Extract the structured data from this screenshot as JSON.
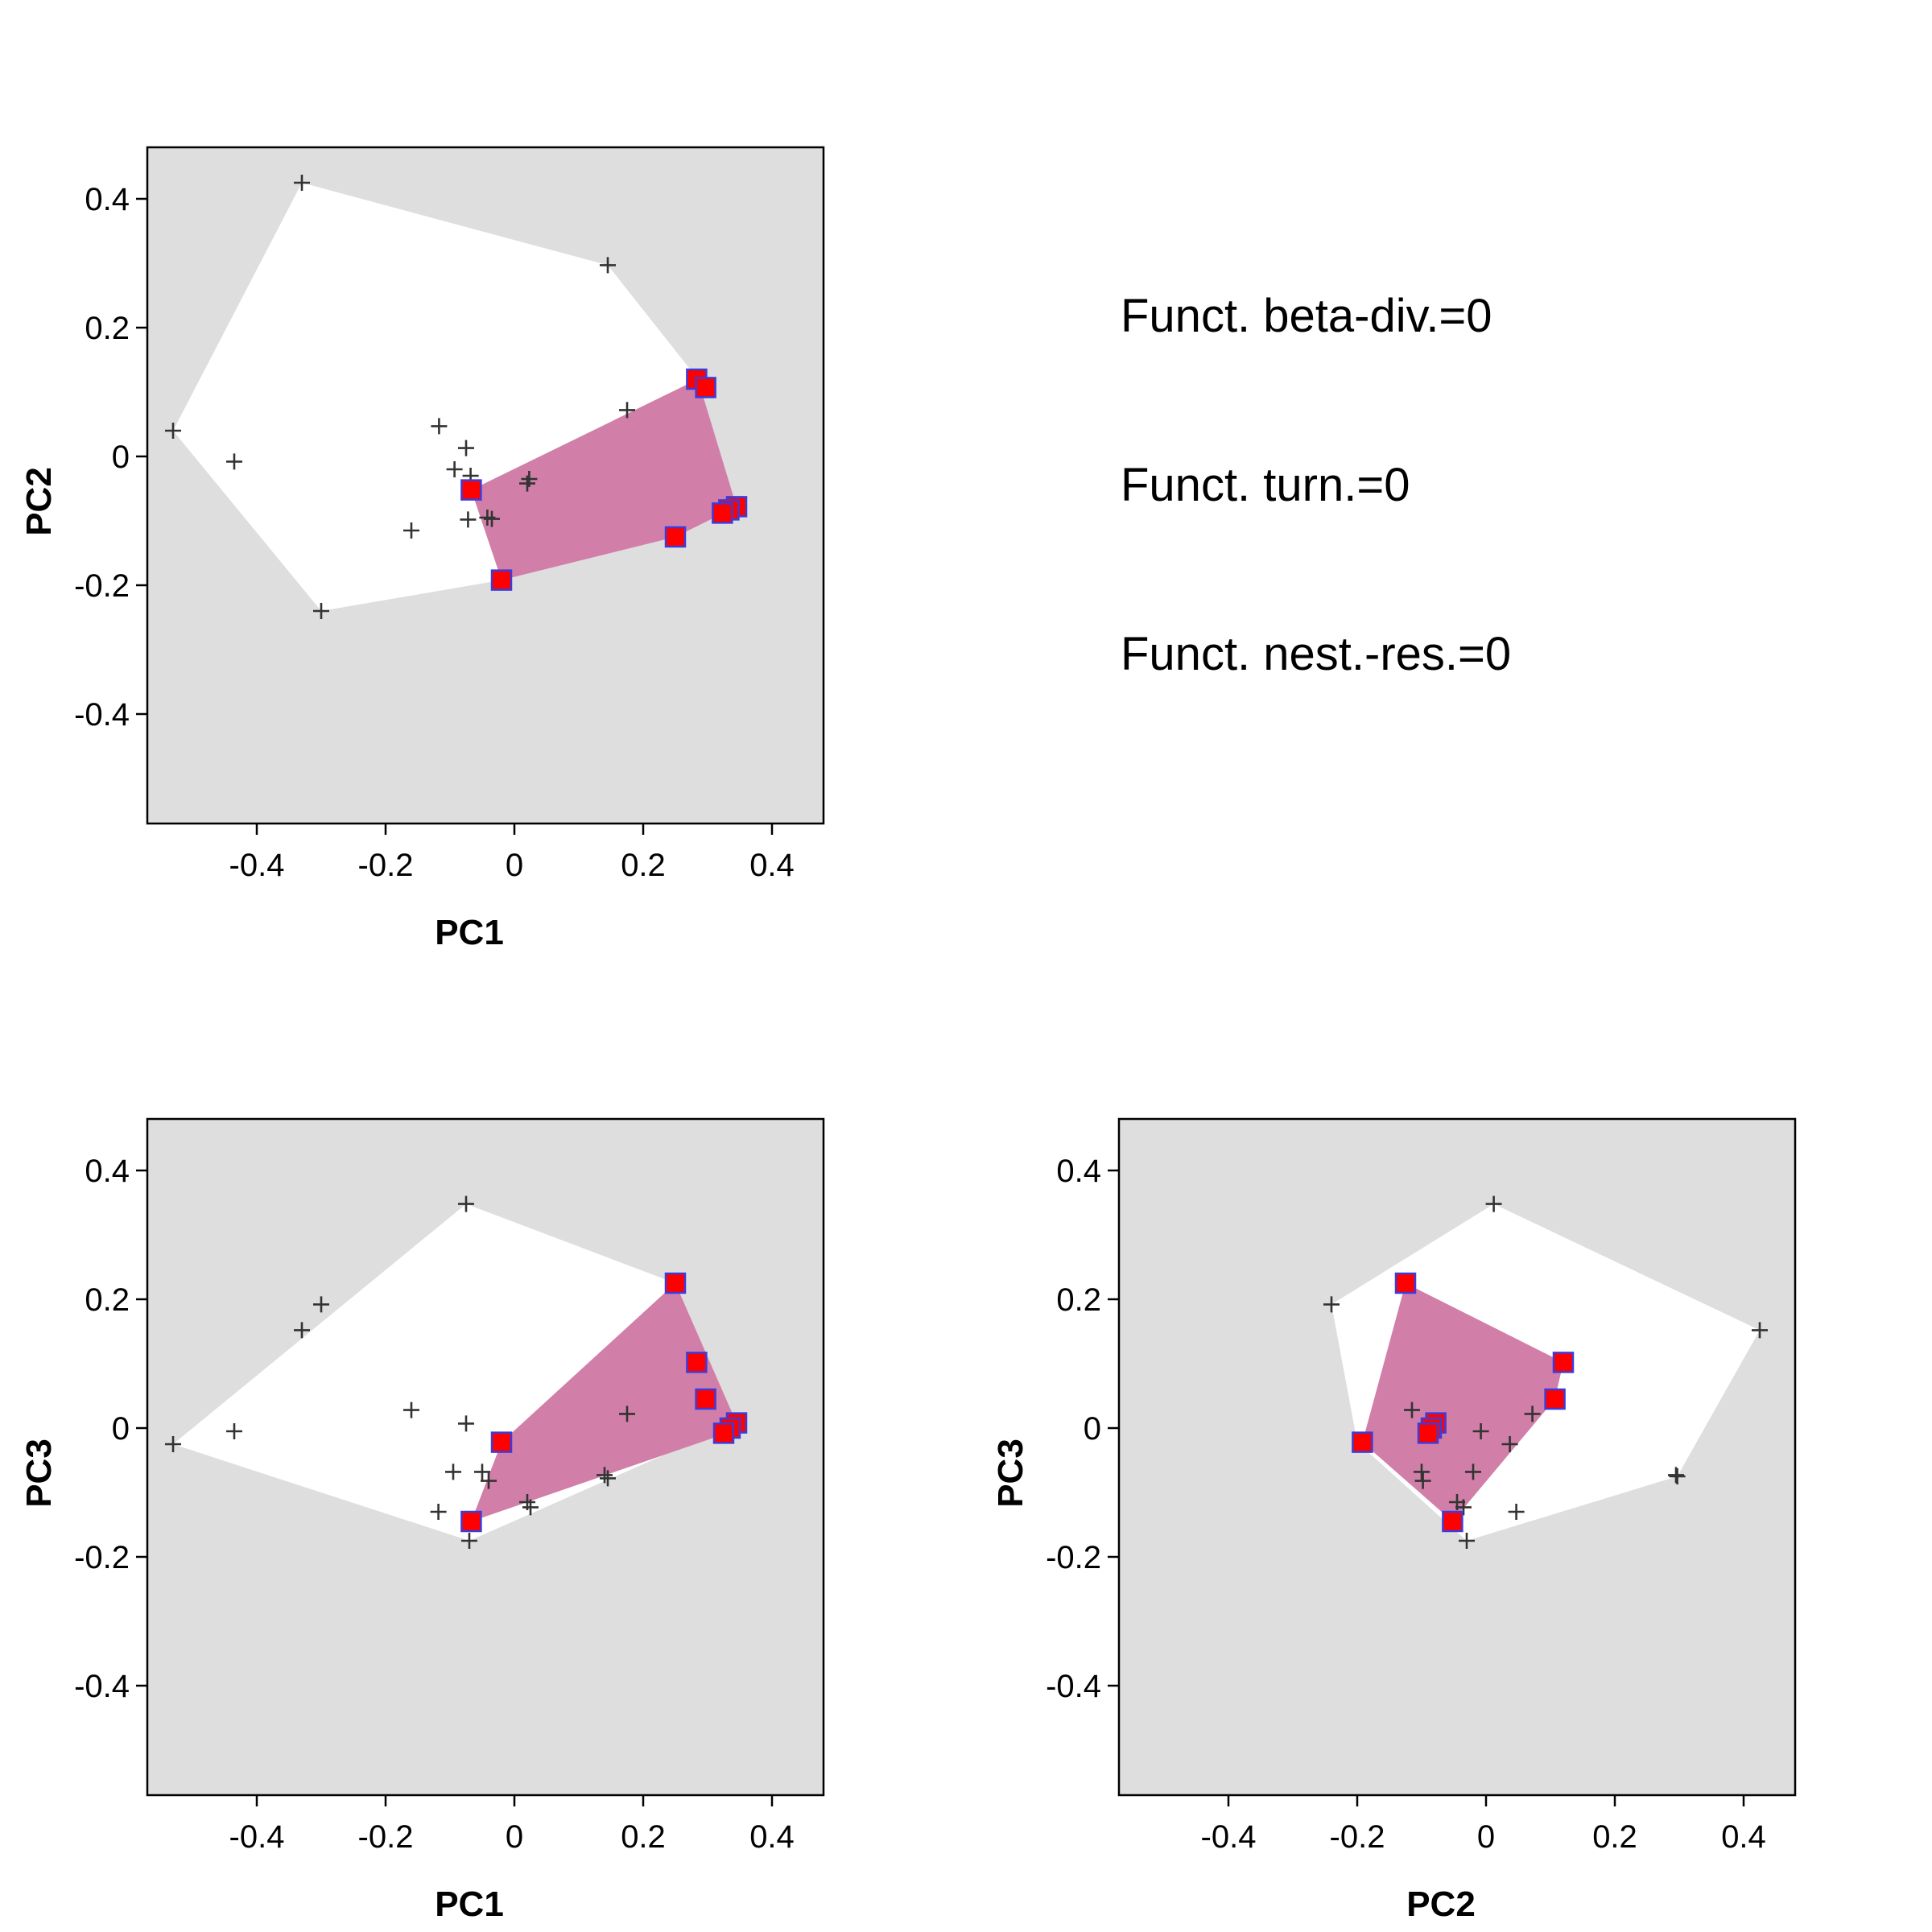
{
  "stats": {
    "beta_div": "Funct. beta-div.=0",
    "turnover": "Funct. turn.=0",
    "nestedness": "Funct. nest.-res.=0"
  },
  "colors": {
    "panel_bg": "#dedede",
    "hull_all": "#ffffff",
    "hull_selected": "#d17fa8",
    "point_fill": "#ff0000",
    "point_border": "#3c3cdc",
    "cross": "#333333"
  },
  "chart_data": [
    {
      "type": "scatter",
      "id": "pc1-pc2",
      "xlabel": "PC1",
      "ylabel": "PC2",
      "xlim": [
        -0.57,
        0.48
      ],
      "ylim": [
        -0.57,
        0.48
      ],
      "xticks": [
        -0.4,
        -0.2,
        0,
        0.2,
        0.4
      ],
      "xtick_labels": [
        "-0.4",
        "-0.2",
        "0",
        "0.2",
        "0.4"
      ],
      "yticks": [
        0.4,
        0.2,
        0,
        -0.2,
        -0.4
      ],
      "ytick_labels": [
        "0.4",
        "0.2",
        "0",
        "-0.2",
        "-0.4"
      ],
      "hull_all": [
        [
          -0.33,
          0.425
        ],
        [
          0.145,
          0.297
        ],
        [
          0.285,
          0.12
        ],
        [
          0.345,
          -0.078
        ],
        [
          0.25,
          -0.125
        ],
        [
          -0.02,
          -0.192
        ],
        [
          -0.3,
          -0.24
        ],
        [
          -0.53,
          0.04
        ]
      ],
      "hull_selected": [
        [
          0.285,
          0.12
        ],
        [
          0.345,
          -0.078
        ],
        [
          0.25,
          -0.125
        ],
        [
          -0.02,
          -0.192
        ],
        [
          -0.067,
          -0.052
        ]
      ],
      "species_all": [
        [
          -0.33,
          0.425
        ],
        [
          0.145,
          0.297
        ],
        [
          -0.53,
          0.04
        ],
        [
          -0.435,
          -0.008
        ],
        [
          -0.3,
          -0.24
        ],
        [
          -0.16,
          -0.115
        ],
        [
          -0.117,
          0.047
        ],
        [
          -0.093,
          -0.02
        ],
        [
          -0.075,
          0.013
        ],
        [
          -0.068,
          -0.03
        ],
        [
          -0.072,
          -0.098
        ],
        [
          -0.042,
          -0.095
        ],
        [
          -0.035,
          -0.097
        ],
        [
          0.02,
          -0.042
        ],
        [
          0.023,
          -0.035
        ],
        [
          0.175,
          0.072
        ],
        [
          0.285,
          0.12
        ],
        [
          0.297,
          0.108
        ],
        [
          0.345,
          -0.078
        ],
        [
          0.33,
          -0.086
        ],
        [
          0.325,
          -0.09
        ],
        [
          0.25,
          -0.125
        ],
        [
          -0.02,
          -0.192
        ],
        [
          -0.067,
          -0.052
        ]
      ],
      "species_selected": [
        [
          0.283,
          0.12
        ],
        [
          0.297,
          0.107
        ],
        [
          0.345,
          -0.078
        ],
        [
          0.333,
          -0.083
        ],
        [
          0.323,
          -0.088
        ],
        [
          0.25,
          -0.125
        ],
        [
          -0.02,
          -0.192
        ],
        [
          -0.067,
          -0.052
        ]
      ]
    },
    {
      "type": "scatter",
      "id": "pc1-pc3",
      "xlabel": "PC1",
      "ylabel": "PC3",
      "xlim": [
        -0.57,
        0.48
      ],
      "ylim": [
        -0.57,
        0.48
      ],
      "xticks": [
        -0.4,
        -0.2,
        0,
        0.2,
        0.4
      ],
      "xtick_labels": [
        "-0.4",
        "-0.2",
        "0",
        "0.2",
        "0.4"
      ],
      "yticks": [
        0.4,
        0.2,
        0,
        -0.2,
        -0.4
      ],
      "ytick_labels": [
        "0.4",
        "0.2",
        "0",
        "-0.2",
        "-0.4"
      ],
      "hull_all": [
        [
          -0.075,
          0.348
        ],
        [
          0.25,
          0.225
        ],
        [
          0.345,
          0.008
        ],
        [
          -0.07,
          -0.175
        ],
        [
          -0.53,
          -0.025
        ]
      ],
      "hull_selected": [
        [
          0.25,
          0.225
        ],
        [
          0.345,
          0.008
        ],
        [
          0.33,
          -0.008
        ],
        [
          -0.067,
          -0.145
        ],
        [
          -0.02,
          -0.022
        ]
      ],
      "species_all": [
        [
          -0.075,
          0.348
        ],
        [
          -0.3,
          0.192
        ],
        [
          -0.33,
          0.152
        ],
        [
          -0.53,
          -0.025
        ],
        [
          -0.435,
          -0.005
        ],
        [
          -0.16,
          0.028
        ],
        [
          -0.075,
          0.007
        ],
        [
          -0.095,
          -0.068
        ],
        [
          -0.05,
          -0.068
        ],
        [
          -0.04,
          -0.082
        ],
        [
          -0.118,
          -0.13
        ],
        [
          -0.07,
          -0.175
        ],
        [
          0.02,
          -0.115
        ],
        [
          0.025,
          -0.123
        ],
        [
          0.14,
          -0.073
        ],
        [
          0.145,
          -0.078
        ],
        [
          0.175,
          0.022
        ],
        [
          0.25,
          0.225
        ],
        [
          0.283,
          0.102
        ],
        [
          0.297,
          0.045
        ],
        [
          0.345,
          0.008
        ],
        [
          0.33,
          -0.005
        ],
        [
          -0.02,
          -0.022
        ],
        [
          -0.067,
          -0.145
        ]
      ],
      "species_selected": [
        [
          0.25,
          0.225
        ],
        [
          0.283,
          0.102
        ],
        [
          0.297,
          0.045
        ],
        [
          0.345,
          0.008
        ],
        [
          0.335,
          0.0
        ],
        [
          0.325,
          -0.008
        ],
        [
          -0.02,
          -0.022
        ],
        [
          -0.067,
          -0.145
        ]
      ]
    },
    {
      "type": "scatter",
      "id": "pc2-pc3",
      "xlabel": "PC2",
      "ylabel": "PC3",
      "xlim": [
        -0.57,
        0.48
      ],
      "ylim": [
        -0.57,
        0.48
      ],
      "xticks": [
        -0.4,
        -0.2,
        0,
        0.2,
        0.4
      ],
      "xtick_labels": [
        "-0.4",
        "-0.2",
        "0",
        "0.2",
        "0.4"
      ],
      "yticks": [
        0.4,
        0.2,
        0,
        -0.2,
        -0.4
      ],
      "ytick_labels": [
        "0.4",
        "0.2",
        "0",
        "-0.2",
        "-0.4"
      ],
      "hull_all": [
        [
          0.012,
          0.348
        ],
        [
          0.425,
          0.152
        ],
        [
          0.297,
          -0.075
        ],
        [
          -0.03,
          -0.175
        ],
        [
          -0.2,
          -0.022
        ],
        [
          -0.24,
          0.192
        ]
      ],
      "hull_selected": [
        [
          -0.125,
          0.225
        ],
        [
          0.12,
          0.102
        ],
        [
          0.107,
          0.045
        ],
        [
          -0.052,
          -0.145
        ],
        [
          -0.192,
          -0.022
        ]
      ],
      "species_all": [
        [
          0.012,
          0.348
        ],
        [
          0.425,
          0.152
        ],
        [
          0.297,
          -0.075
        ],
        [
          0.295,
          -0.073
        ],
        [
          -0.24,
          0.192
        ],
        [
          -0.115,
          0.028
        ],
        [
          -0.1,
          -0.068
        ],
        [
          -0.098,
          -0.082
        ],
        [
          -0.045,
          -0.115
        ],
        [
          -0.035,
          -0.123
        ],
        [
          -0.03,
          -0.175
        ],
        [
          -0.02,
          -0.068
        ],
        [
          -0.008,
          -0.005
        ],
        [
          0.037,
          -0.025
        ],
        [
          0.072,
          0.022
        ],
        [
          0.047,
          -0.13
        ],
        [
          -0.125,
          0.225
        ],
        [
          0.12,
          0.102
        ],
        [
          0.107,
          0.045
        ],
        [
          -0.078,
          0.008
        ],
        [
          -0.086,
          -0.002
        ],
        [
          -0.09,
          -0.008
        ],
        [
          -0.192,
          -0.022
        ],
        [
          -0.052,
          -0.145
        ]
      ],
      "species_selected": [
        [
          -0.125,
          0.225
        ],
        [
          0.12,
          0.102
        ],
        [
          0.107,
          0.045
        ],
        [
          -0.078,
          0.008
        ],
        [
          -0.085,
          0.0
        ],
        [
          -0.09,
          -0.008
        ],
        [
          -0.192,
          -0.022
        ],
        [
          -0.052,
          -0.145
        ]
      ]
    }
  ]
}
